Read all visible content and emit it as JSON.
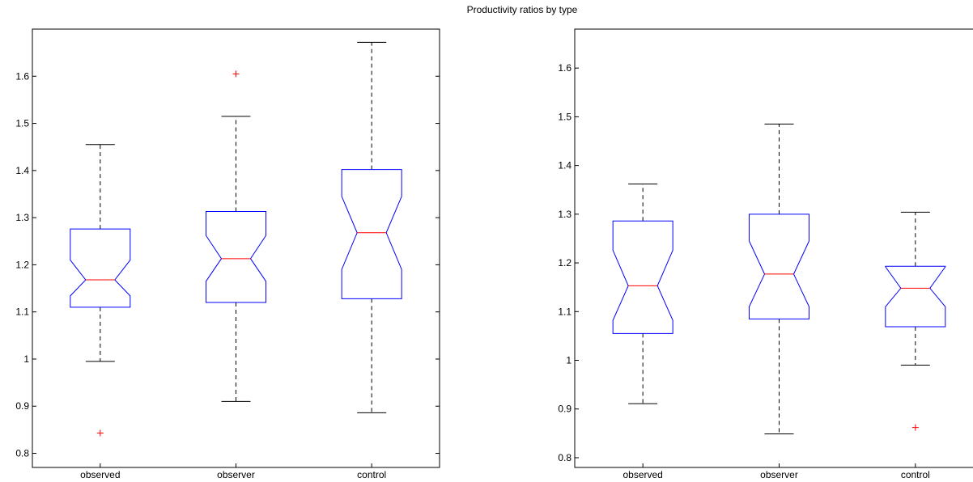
{
  "figure_title": "Productivity ratios by type",
  "chart_data": [
    {
      "type": "box",
      "notched": true,
      "title": "Productivity ratios by type",
      "xlabel": "",
      "ylabel": "",
      "categories": [
        "observed",
        "observer",
        "control"
      ],
      "ylim": [
        0.77,
        1.7
      ],
      "yticks": [
        0.8,
        0.9,
        1,
        1.1,
        1.2,
        1.3,
        1.4,
        1.5,
        1.6
      ],
      "ytick_labels": [
        "0.8",
        "0.9",
        "1",
        "1.1",
        "1.2",
        "1.3",
        "1.4",
        "1.5",
        "1.6"
      ],
      "boxes": [
        {
          "whisker_low": 0.995,
          "q1": 1.11,
          "notch_low": 1.134,
          "median": 1.168,
          "notch_high": 1.21,
          "q3": 1.276,
          "whisker_high": 1.455,
          "outliers": [
            0.843
          ]
        },
        {
          "whisker_low": 0.91,
          "q1": 1.12,
          "notch_low": 1.165,
          "median": 1.213,
          "notch_high": 1.262,
          "q3": 1.313,
          "whisker_high": 1.515,
          "outliers": [
            1.605
          ]
        },
        {
          "whisker_low": 0.886,
          "q1": 1.128,
          "notch_low": 1.19,
          "median": 1.268,
          "notch_high": 1.345,
          "q3": 1.402,
          "whisker_high": 1.672,
          "outliers": []
        }
      ],
      "grid": false,
      "legend": "none",
      "colors": {
        "box": "#0000ff",
        "median": "#ff0000",
        "whisker": "#000000",
        "outlier": "#ff0000"
      }
    },
    {
      "type": "box",
      "notched": true,
      "title": "",
      "xlabel": "",
      "ylabel": "",
      "categories": [
        "observed",
        "observer",
        "control"
      ],
      "ylim": [
        0.78,
        1.68
      ],
      "yticks": [
        0.8,
        0.9,
        1,
        1.1,
        1.2,
        1.3,
        1.4,
        1.5,
        1.6
      ],
      "ytick_labels": [
        "0.8",
        "0.9",
        "1",
        "1.1",
        "1.2",
        "1.3",
        "1.4",
        "1.5",
        "1.6"
      ],
      "boxes": [
        {
          "whisker_low": 0.911,
          "q1": 1.055,
          "notch_low": 1.082,
          "median": 1.153,
          "notch_high": 1.226,
          "q3": 1.286,
          "whisker_high": 1.362,
          "outliers": []
        },
        {
          "whisker_low": 0.849,
          "q1": 1.085,
          "notch_low": 1.11,
          "median": 1.177,
          "notch_high": 1.245,
          "q3": 1.3,
          "whisker_high": 1.485,
          "outliers": []
        },
        {
          "whisker_low": 0.99,
          "q1": 1.069,
          "notch_low": 1.11,
          "median": 1.148,
          "notch_high": 1.192,
          "q3": 1.193,
          "whisker_high": 1.304,
          "outliers": [
            0.862
          ]
        }
      ],
      "grid": false,
      "legend": "none",
      "colors": {
        "box": "#0000ff",
        "median": "#ff0000",
        "whisker": "#000000",
        "outlier": "#ff0000"
      }
    }
  ]
}
